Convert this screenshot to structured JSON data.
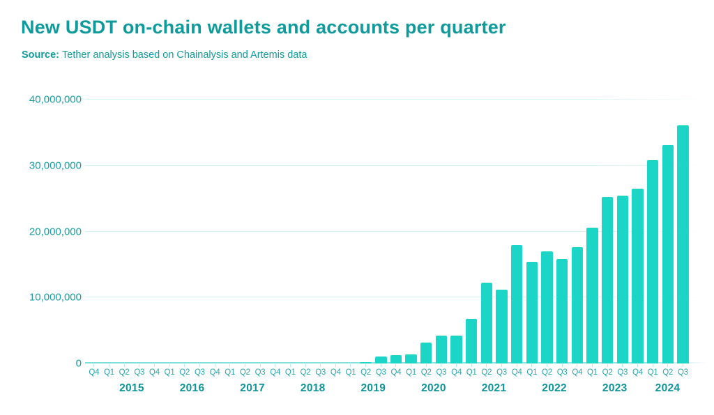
{
  "title": "New USDT on-chain wallets and accounts per quarter",
  "source": {
    "label": "Source:",
    "text": "Tether analysis based on Chainalysis and Artemis data"
  },
  "colors": {
    "bar": "#1bd6c7",
    "title_text": "#0f9a9c",
    "axis_text": "#189da0",
    "quarter_text": "#2aa7aa",
    "year_text": "#0d9598",
    "gridline": "#d4f3f0",
    "baseline": "#7be0d8"
  },
  "chart_data": {
    "type": "bar",
    "title": "New USDT on-chain wallets and accounts per quarter",
    "xlabel": "",
    "ylabel": "",
    "ylim": [
      0,
      40000000
    ],
    "grid": "horizontal",
    "legend": "none",
    "y_ticks": [
      {
        "value": 0,
        "label": "0"
      },
      {
        "value": 10000000,
        "label": "10,000,000"
      },
      {
        "value": 20000000,
        "label": "20,000,000"
      },
      {
        "value": 30000000,
        "label": "30,000,000"
      },
      {
        "value": 40000000,
        "label": "40,000,000"
      }
    ],
    "quarter_labels": [
      "Q4",
      "Q1",
      "Q2",
      "Q3",
      "Q4",
      "Q1",
      "Q2",
      "Q3",
      "Q4",
      "Q1",
      "Q2",
      "Q3",
      "Q4",
      "Q1",
      "Q2",
      "Q3",
      "Q4",
      "Q1",
      "Q2",
      "Q3",
      "Q4",
      "Q1",
      "Q2",
      "Q3",
      "Q4",
      "Q1",
      "Q2",
      "Q3",
      "Q4",
      "Q1",
      "Q2",
      "Q3",
      "Q4",
      "Q1",
      "Q2",
      "Q3",
      "Q4",
      "Q1",
      "Q2",
      "Q3"
    ],
    "categories": [
      "2014-Q4",
      "2015-Q1",
      "2015-Q2",
      "2015-Q3",
      "2015-Q4",
      "2016-Q1",
      "2016-Q2",
      "2016-Q3",
      "2016-Q4",
      "2017-Q1",
      "2017-Q2",
      "2017-Q3",
      "2017-Q4",
      "2018-Q1",
      "2018-Q2",
      "2018-Q3",
      "2018-Q4",
      "2019-Q1",
      "2019-Q2",
      "2019-Q3",
      "2019-Q4",
      "2020-Q1",
      "2020-Q2",
      "2020-Q3",
      "2020-Q4",
      "2021-Q1",
      "2021-Q2",
      "2021-Q3",
      "2021-Q4",
      "2022-Q1",
      "2022-Q2",
      "2022-Q3",
      "2022-Q4",
      "2023-Q1",
      "2023-Q2",
      "2023-Q3",
      "2023-Q4",
      "2024-Q1",
      "2024-Q2",
      "2024-Q3"
    ],
    "values": [
      0,
      0,
      0,
      0,
      0,
      0,
      0,
      0,
      0,
      0,
      0,
      0,
      0,
      0,
      0,
      0,
      0,
      0,
      200000,
      1100000,
      1300000,
      1400000,
      3200000,
      4200000,
      4200000,
      6800000,
      12200000,
      11200000,
      17900000,
      15400000,
      17000000,
      15800000,
      17600000,
      20600000,
      25200000,
      25400000,
      26500000,
      30800000,
      33100000,
      36100000
    ],
    "year_groups": [
      {
        "label": "2015",
        "start": 1,
        "count": 4
      },
      {
        "label": "2016",
        "start": 5,
        "count": 4
      },
      {
        "label": "2017",
        "start": 9,
        "count": 4
      },
      {
        "label": "2018",
        "start": 13,
        "count": 4
      },
      {
        "label": "2019",
        "start": 17,
        "count": 4
      },
      {
        "label": "2020",
        "start": 21,
        "count": 4
      },
      {
        "label": "2021",
        "start": 25,
        "count": 4
      },
      {
        "label": "2022",
        "start": 29,
        "count": 4
      },
      {
        "label": "2023",
        "start": 33,
        "count": 4
      },
      {
        "label": "2024",
        "start": 37,
        "count": 3
      }
    ]
  }
}
